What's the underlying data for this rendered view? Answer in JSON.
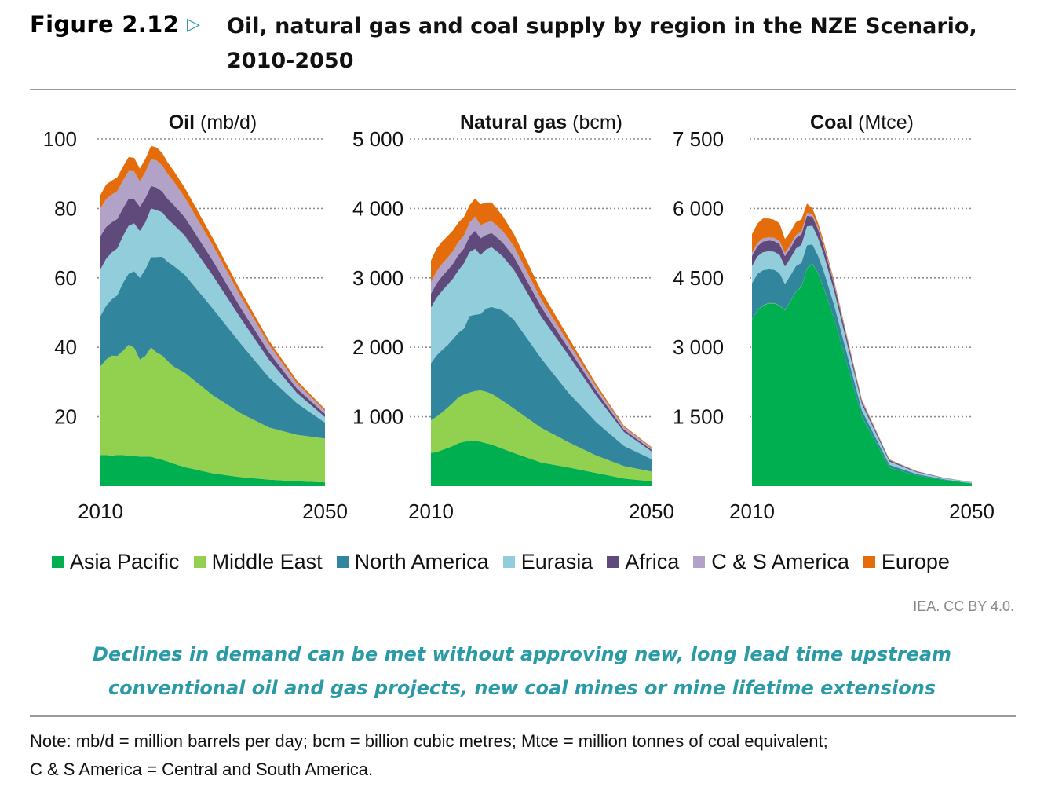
{
  "figure": {
    "label": "Figure 2.12",
    "title": "Oil, natural gas and coal supply by region in the NZE Scenario, 2010-2050"
  },
  "colors": {
    "Asia Pacific": "#00b050",
    "Middle East": "#92d050",
    "North America": "#31859c",
    "Eurasia": "#92cddc",
    "Africa": "#604a7b",
    "C & S America": "#b3a2c7",
    "Europe": "#e46c0a"
  },
  "chart_data": [
    {
      "type": "area",
      "stacked": true,
      "title_bold": "Oil",
      "title_unit": "(mb/d)",
      "x": [
        2010,
        2011,
        2012,
        2013,
        2014,
        2015,
        2016,
        2017,
        2018,
        2019,
        2020,
        2021,
        2022,
        2023,
        2025,
        2030,
        2035,
        2040,
        2045,
        2050
      ],
      "xticks": [
        "2010",
        "2050"
      ],
      "ylim": [
        0,
        100
      ],
      "yticks": [
        "20",
        "40",
        "60",
        "80",
        "100"
      ],
      "grid": true,
      "series": [
        {
          "name": "Asia Pacific",
          "values": [
            9.0,
            9.0,
            8.8,
            9.0,
            9.0,
            8.7,
            8.7,
            8.5,
            8.5,
            8.5,
            8.0,
            7.6,
            7.1,
            6.5,
            5.5,
            3.7,
            2.6,
            1.9,
            1.4,
            1.1
          ]
        },
        {
          "name": "Middle East",
          "values": [
            25.5,
            27.5,
            28.8,
            28.5,
            30.0,
            32.0,
            31.2,
            28.0,
            29.0,
            31.5,
            30.5,
            30.0,
            28.9,
            28.0,
            27.2,
            22.5,
            18.4,
            15.0,
            13.4,
            12.6
          ]
        },
        {
          "name": "North America",
          "values": [
            14.5,
            15.5,
            16.2,
            17.5,
            19.5,
            20.5,
            22.0,
            23.5,
            25.0,
            26.0,
            27.5,
            28.5,
            28.6,
            29.0,
            28.2,
            25.0,
            20.0,
            14.5,
            9.1,
            4.6
          ]
        },
        {
          "name": "Eurasia",
          "values": [
            13.5,
            13.5,
            13.5,
            13.5,
            13.5,
            13.8,
            13.8,
            13.5,
            13.5,
            14.0,
            13.5,
            12.8,
            12.3,
            11.9,
            11.3,
            9.5,
            7.3,
            5.1,
            2.9,
            1.6
          ]
        },
        {
          "name": "Africa",
          "values": [
            9.5,
            9.2,
            8.7,
            8.5,
            8.0,
            7.8,
            7.0,
            7.0,
            7.0,
            6.5,
            6.5,
            6.0,
            5.8,
            5.7,
            5.3,
            4.3,
            3.0,
            2.1,
            1.3,
            0.9
          ]
        },
        {
          "name": "C & S America",
          "values": [
            8.0,
            8.0,
            8.0,
            8.0,
            8.0,
            8.0,
            8.0,
            7.3,
            7.5,
            7.7,
            7.8,
            7.5,
            7.2,
            6.8,
            5.7,
            4.4,
            3.3,
            2.3,
            1.5,
            0.9
          ]
        },
        {
          "name": "Europe",
          "values": [
            3.9,
            4.2,
            4.0,
            4.0,
            4.0,
            4.0,
            3.9,
            3.7,
            3.8,
            3.8,
            3.8,
            3.6,
            3.3,
            3.1,
            2.8,
            2.1,
            1.6,
            1.1,
            0.8,
            0.5
          ]
        }
      ]
    },
    {
      "type": "area",
      "stacked": true,
      "title_bold": "Natural gas",
      "title_unit": "(bcm)",
      "x": [
        2010,
        2011,
        2012,
        2013,
        2014,
        2015,
        2016,
        2017,
        2018,
        2019,
        2020,
        2021,
        2022,
        2023,
        2025,
        2030,
        2035,
        2040,
        2045,
        2050
      ],
      "xticks": [
        "2010",
        "2050"
      ],
      "ylim": [
        0,
        5000
      ],
      "yticks": [
        "1 000",
        "2 000",
        "3 000",
        "4 000",
        "5 000"
      ],
      "grid": true,
      "series": [
        {
          "name": "Asia Pacific",
          "values": [
            480,
            490,
            520,
            550,
            580,
            620,
            640,
            650,
            650,
            640,
            620,
            600,
            570,
            540,
            480,
            340,
            270,
            190,
            110,
            70
          ]
        },
        {
          "name": "Middle East",
          "values": [
            470,
            510,
            540,
            580,
            620,
            660,
            680,
            700,
            720,
            740,
            740,
            730,
            710,
            690,
            640,
            500,
            360,
            250,
            180,
            140
          ]
        },
        {
          "name": "North America",
          "values": [
            820,
            880,
            900,
            900,
            920,
            930,
            950,
            1100,
            1100,
            1100,
            1200,
            1250,
            1280,
            1300,
            1280,
            1000,
            710,
            480,
            290,
            180
          ]
        },
        {
          "name": "Eurasia",
          "values": [
            800,
            830,
            850,
            870,
            870,
            900,
            940,
            920,
            950,
            850,
            850,
            860,
            820,
            780,
            720,
            600,
            540,
            380,
            200,
            110
          ]
        },
        {
          "name": "Africa",
          "values": [
            200,
            205,
            210,
            210,
            215,
            220,
            215,
            230,
            260,
            240,
            210,
            205,
            200,
            200,
            190,
            140,
            100,
            70,
            35,
            25
          ]
        },
        {
          "name": "C & S America",
          "values": [
            170,
            175,
            180,
            180,
            180,
            190,
            185,
            195,
            205,
            190,
            175,
            172,
            170,
            165,
            150,
            110,
            80,
            55,
            35,
            25
          ]
        },
        {
          "name": "Europe",
          "values": [
            310,
            330,
            320,
            310,
            300,
            280,
            270,
            250,
            260,
            300,
            290,
            270,
            240,
            220,
            180,
            120,
            75,
            40,
            20,
            12
          ]
        }
      ]
    },
    {
      "type": "area",
      "stacked": true,
      "title_bold": "Coal",
      "title_unit": "(Mtce)",
      "x": [
        2010,
        2011,
        2012,
        2013,
        2014,
        2015,
        2016,
        2017,
        2018,
        2019,
        2020,
        2021,
        2022,
        2023,
        2025,
        2030,
        2035,
        2040,
        2045,
        2050
      ],
      "xticks": [
        "2010",
        "2050"
      ],
      "ylim": [
        0,
        7500
      ],
      "yticks": [
        "1 500",
        "3 000",
        "4 500",
        "6 000",
        "7 500"
      ],
      "grid": true,
      "series": [
        {
          "name": "Asia Pacific",
          "values": [
            3600,
            3800,
            3900,
            3950,
            3950,
            3900,
            3800,
            4000,
            4200,
            4300,
            4700,
            4800,
            4600,
            4300,
            3600,
            1500,
            400,
            230,
            130,
            60
          ]
        },
        {
          "name": "Middle East",
          "values": [
            5,
            5,
            5,
            5,
            5,
            5,
            5,
            5,
            5,
            5,
            5,
            5,
            5,
            5,
            4,
            3,
            2,
            1,
            1,
            1
          ]
        },
        {
          "name": "North America",
          "values": [
            780,
            780,
            760,
            730,
            720,
            700,
            560,
            550,
            550,
            520,
            500,
            420,
            380,
            360,
            290,
            130,
            60,
            30,
            15,
            5
          ]
        },
        {
          "name": "Eurasia",
          "values": [
            370,
            380,
            390,
            390,
            390,
            395,
            380,
            370,
            380,
            390,
            410,
            400,
            380,
            360,
            300,
            140,
            70,
            40,
            25,
            15
          ]
        },
        {
          "name": "Africa",
          "values": [
            220,
            220,
            230,
            230,
            230,
            230,
            225,
            220,
            225,
            225,
            225,
            200,
            190,
            170,
            140,
            60,
            30,
            15,
            8,
            4
          ]
        },
        {
          "name": "C & S America",
          "values": [
            70,
            70,
            70,
            70,
            70,
            70,
            68,
            65,
            65,
            65,
            65,
            55,
            50,
            45,
            40,
            20,
            10,
            5,
            3,
            2
          ]
        },
        {
          "name": "Europe",
          "values": [
            400,
            420,
            430,
            410,
            390,
            380,
            300,
            290,
            280,
            260,
            200,
            120,
            90,
            70,
            40,
            20,
            8,
            4,
            2,
            1
          ]
        }
      ]
    }
  ],
  "legend": [
    "Asia Pacific",
    "Middle East",
    "North America",
    "Eurasia",
    "Africa",
    "C & S America",
    "Europe"
  ],
  "credit": "IEA. CC BY 4.0.",
  "conclusion": {
    "line1": "Declines in demand can be met without approving new, long lead time upstream",
    "line2": "conventional oil and gas projects, new coal mines or mine lifetime extensions"
  },
  "note": {
    "line1": "Note: mb/d = million barrels per day; bcm = billion cubic metres; Mtce = million tonnes of coal equivalent;",
    "line2": "C & S America = Central and South America."
  }
}
